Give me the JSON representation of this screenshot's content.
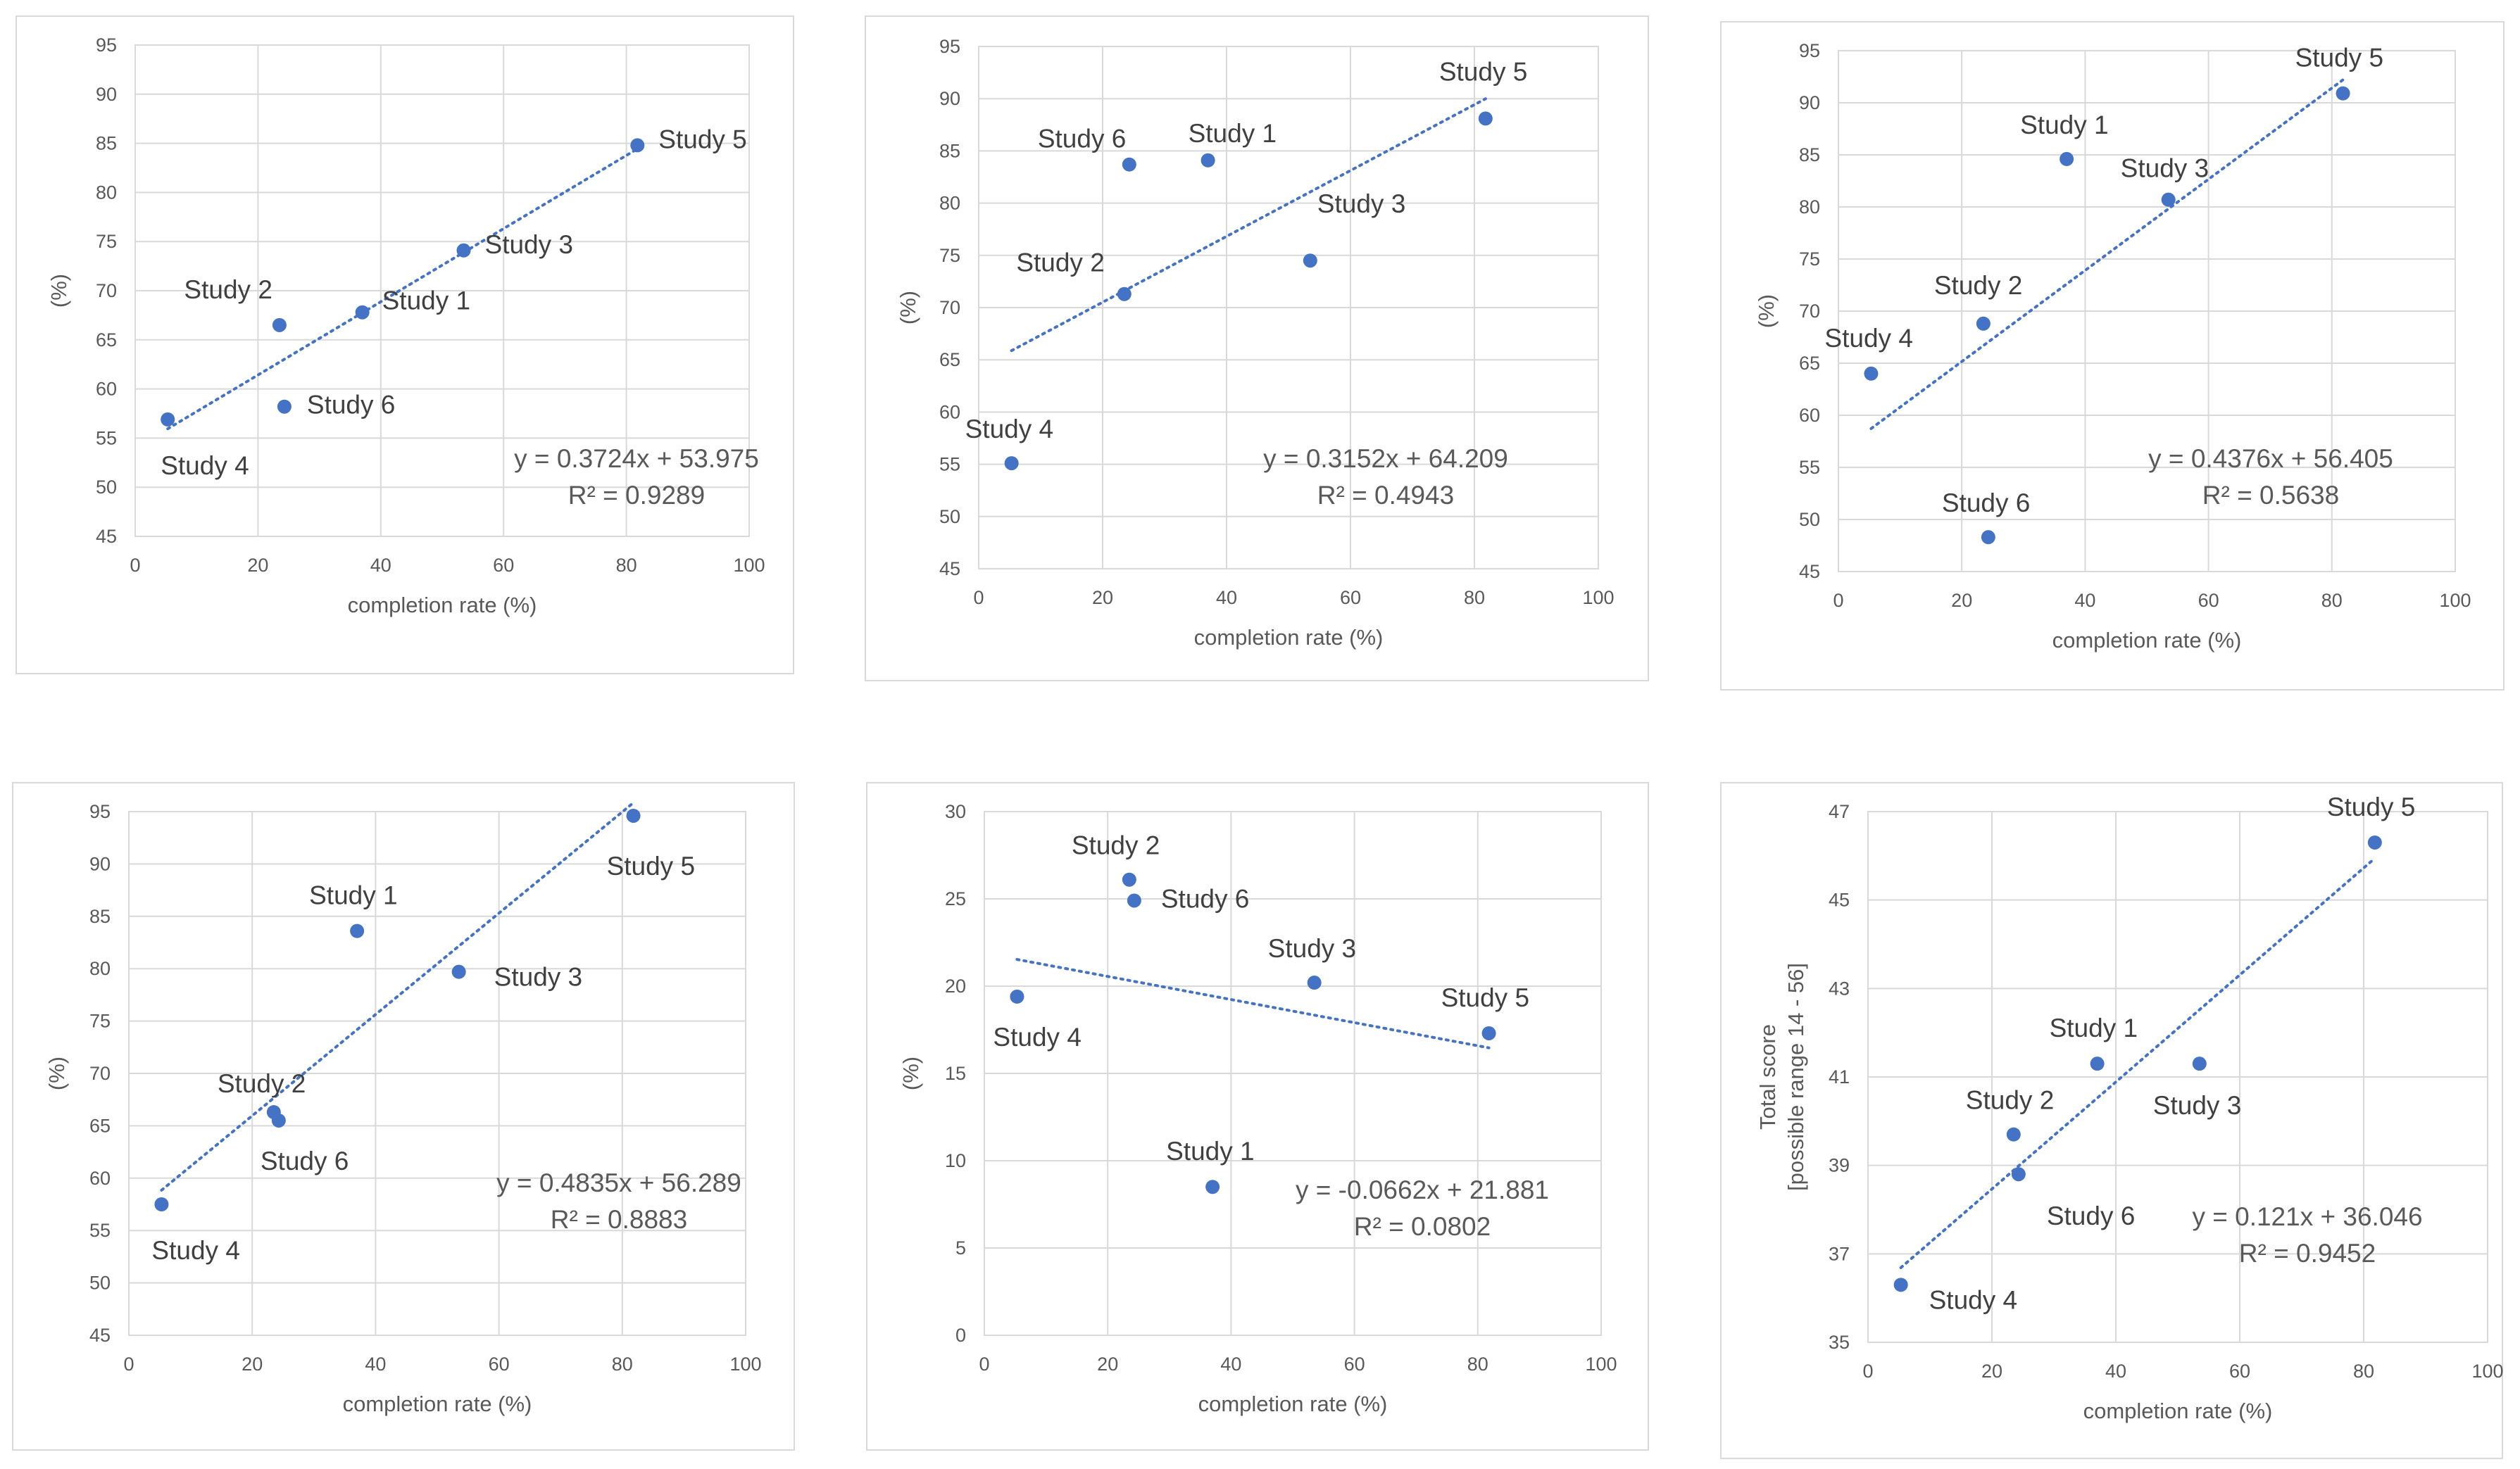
{
  "colors": {
    "marker": "#4472c4",
    "trendline": "#4472c4",
    "grid": "#d9d9d9",
    "text": "#595959"
  },
  "chart_data": [
    {
      "type": "scatter",
      "name": "chart-1",
      "xlabel": "completion rate (%)",
      "ylabel": "(%)",
      "xlim": [
        0,
        100
      ],
      "xticks": [
        0,
        20,
        40,
        60,
        80,
        100
      ],
      "ylim": [
        45,
        95
      ],
      "yticks": [
        45,
        50,
        55,
        60,
        65,
        70,
        75,
        80,
        85,
        90,
        95
      ],
      "points": [
        {
          "label": "Study 1",
          "x": 37,
          "y": 67.8
        },
        {
          "label": "Study 2",
          "x": 23.5,
          "y": 66.5
        },
        {
          "label": "Study 3",
          "x": 53.5,
          "y": 74.1
        },
        {
          "label": "Study 4",
          "x": 5.3,
          "y": 56.9
        },
        {
          "label": "Study 5",
          "x": 81.8,
          "y": 84.8
        },
        {
          "label": "Study 6",
          "x": 24.3,
          "y": 58.2
        }
      ],
      "trendline": {
        "slope": 0.3724,
        "intercept": 53.975,
        "x_from": 5.3,
        "x_to": 81.8
      },
      "equation": "y = 0.3724x + 53.975",
      "r2": "R² = 0.9289"
    },
    {
      "type": "scatter",
      "name": "chart-2",
      "xlabel": "completion rate (%)",
      "ylabel": "(%)",
      "xlim": [
        0,
        100
      ],
      "xticks": [
        0,
        20,
        40,
        60,
        80,
        100
      ],
      "ylim": [
        45,
        95
      ],
      "yticks": [
        45,
        50,
        55,
        60,
        65,
        70,
        75,
        80,
        85,
        90,
        95
      ],
      "points": [
        {
          "label": "Study 1",
          "x": 37,
          "y": 84.1
        },
        {
          "label": "Study 2",
          "x": 23.5,
          "y": 71.3
        },
        {
          "label": "Study 3",
          "x": 53.5,
          "y": 74.5
        },
        {
          "label": "Study 4",
          "x": 5.3,
          "y": 55.1
        },
        {
          "label": "Study 5",
          "x": 81.8,
          "y": 88.1
        },
        {
          "label": "Study 6",
          "x": 24.3,
          "y": 83.7
        }
      ],
      "trendline": {
        "slope": 0.3152,
        "intercept": 64.209,
        "x_from": 5.3,
        "x_to": 81.8
      },
      "equation": "y = 0.3152x + 64.209",
      "r2": "R² = 0.4943"
    },
    {
      "type": "scatter",
      "name": "chart-3",
      "xlabel": "completion rate (%)",
      "ylabel": "(%)",
      "xlim": [
        0,
        100
      ],
      "xticks": [
        0,
        20,
        40,
        60,
        80,
        100
      ],
      "ylim": [
        45,
        95
      ],
      "yticks": [
        45,
        50,
        55,
        60,
        65,
        70,
        75,
        80,
        85,
        90,
        95
      ],
      "points": [
        {
          "label": "Study 1",
          "x": 37,
          "y": 84.6
        },
        {
          "label": "Study 2",
          "x": 23.5,
          "y": 68.8
        },
        {
          "label": "Study 3",
          "x": 53.5,
          "y": 80.7
        },
        {
          "label": "Study 4",
          "x": 5.3,
          "y": 64.0
        },
        {
          "label": "Study 5",
          "x": 81.8,
          "y": 90.9
        },
        {
          "label": "Study 6",
          "x": 24.3,
          "y": 48.3
        }
      ],
      "trendline": {
        "slope": 0.4376,
        "intercept": 56.405,
        "x_from": 5.3,
        "x_to": 81.8
      },
      "equation": "y = 0.4376x + 56.405",
      "r2": "R² = 0.5638"
    },
    {
      "type": "scatter",
      "name": "chart-4",
      "xlabel": "completion rate (%)",
      "ylabel": "(%)",
      "xlim": [
        0,
        100
      ],
      "xticks": [
        0,
        20,
        40,
        60,
        80,
        100
      ],
      "ylim": [
        45,
        95
      ],
      "yticks": [
        45,
        50,
        55,
        60,
        65,
        70,
        75,
        80,
        85,
        90,
        95
      ],
      "points": [
        {
          "label": "Study 1",
          "x": 37,
          "y": 83.6
        },
        {
          "label": "Study 2",
          "x": 23.5,
          "y": 66.3
        },
        {
          "label": "Study 3",
          "x": 53.5,
          "y": 79.7
        },
        {
          "label": "Study 4",
          "x": 5.3,
          "y": 57.5
        },
        {
          "label": "Study 5",
          "x": 81.8,
          "y": 94.6
        },
        {
          "label": "Study 6",
          "x": 24.3,
          "y": 65.5
        }
      ],
      "trendline": {
        "slope": 0.4835,
        "intercept": 56.289,
        "x_from": 5.3,
        "x_to": 81.8
      },
      "equation": "y = 0.4835x + 56.289",
      "r2": "R² = 0.8883"
    },
    {
      "type": "scatter",
      "name": "chart-5",
      "xlabel": "completion rate (%)",
      "ylabel": "(%)",
      "xlim": [
        0,
        100
      ],
      "xticks": [
        0,
        20,
        40,
        60,
        80,
        100
      ],
      "ylim": [
        0,
        30
      ],
      "yticks": [
        0,
        5,
        10,
        15,
        20,
        25,
        30
      ],
      "points": [
        {
          "label": "Study 1",
          "x": 37,
          "y": 8.5
        },
        {
          "label": "Study 2",
          "x": 23.5,
          "y": 26.1
        },
        {
          "label": "Study 3",
          "x": 53.5,
          "y": 20.2
        },
        {
          "label": "Study 4",
          "x": 5.3,
          "y": 19.4
        },
        {
          "label": "Study 5",
          "x": 81.8,
          "y": 17.3
        },
        {
          "label": "Study 6",
          "x": 24.3,
          "y": 24.9
        }
      ],
      "trendline": {
        "slope": -0.0662,
        "intercept": 21.881,
        "x_from": 5.3,
        "x_to": 81.8
      },
      "equation": "y = -0.0662x + 21.881",
      "r2": "R² = 0.0802"
    },
    {
      "type": "scatter",
      "name": "chart-6",
      "xlabel": "completion rate (%)",
      "ylabel_lines": [
        "Total score",
        "[possible range 14 - 56]"
      ],
      "xlim": [
        0,
        100
      ],
      "xticks": [
        0,
        20,
        40,
        60,
        80,
        100
      ],
      "ylim": [
        35,
        47
      ],
      "yticks": [
        35,
        37,
        39,
        41,
        43,
        45,
        47
      ],
      "points": [
        {
          "label": "Study 1",
          "x": 37,
          "y": 41.3
        },
        {
          "label": "Study 2",
          "x": 23.5,
          "y": 39.7
        },
        {
          "label": "Study 3",
          "x": 53.5,
          "y": 41.3
        },
        {
          "label": "Study 4",
          "x": 5.3,
          "y": 36.3
        },
        {
          "label": "Study 5",
          "x": 81.8,
          "y": 46.3
        },
        {
          "label": "Study 6",
          "x": 24.3,
          "y": 38.8
        }
      ],
      "trendline": {
        "slope": 0.121,
        "intercept": 36.046,
        "x_from": 5.3,
        "x_to": 81.8
      },
      "equation": "y = 0.121x + 36.046",
      "r2": "R² = 0.9452"
    }
  ]
}
